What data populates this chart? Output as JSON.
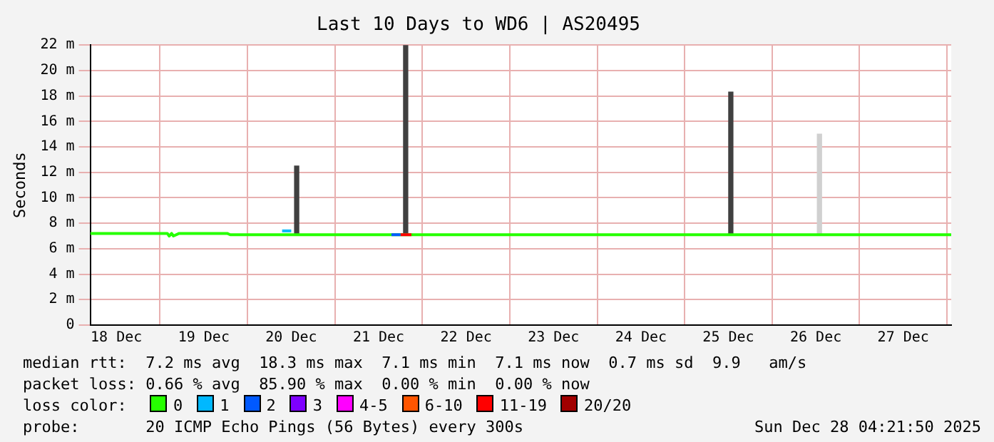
{
  "chart_data": {
    "type": "line",
    "title": "Last 10 Days to WD6 | AS20495",
    "ylabel": "Seconds",
    "xlim": [
      "2025-12-18T04:50",
      "2025-12-28T01:10"
    ],
    "xticks": [
      {
        "value": "2025-12-18T12:00",
        "label": "18 Dec"
      },
      {
        "value": "2025-12-19T12:00",
        "label": "19 Dec"
      },
      {
        "value": "2025-12-20T12:00",
        "label": "20 Dec"
      },
      {
        "value": "2025-12-21T12:00",
        "label": "21 Dec"
      },
      {
        "value": "2025-12-22T12:00",
        "label": "22 Dec"
      },
      {
        "value": "2025-12-23T12:00",
        "label": "23 Dec"
      },
      {
        "value": "2025-12-24T12:00",
        "label": "24 Dec"
      },
      {
        "value": "2025-12-25T12:00",
        "label": "25 Dec"
      },
      {
        "value": "2025-12-26T12:00",
        "label": "26 Dec"
      },
      {
        "value": "2025-12-27T12:00",
        "label": "27 Dec"
      }
    ],
    "ylim": [
      0,
      22
    ],
    "yticks": [
      0,
      {
        "value": 2,
        "label": "2 m"
      },
      {
        "value": 4,
        "label": "4 m"
      },
      {
        "value": 6,
        "label": "6 m"
      },
      {
        "value": 8,
        "label": "8 m"
      },
      {
        "value": 10,
        "label": "10 m"
      },
      {
        "value": 12,
        "label": "12 m"
      },
      {
        "value": 14,
        "label": "14 m"
      },
      {
        "value": 16,
        "label": "16 m"
      },
      {
        "value": 18,
        "label": "18 m"
      },
      {
        "value": 20,
        "label": "20 m"
      },
      {
        "value": 22,
        "label": "22 m"
      }
    ],
    "grid": true,
    "legend": "bottom",
    "legend_title": "loss color:",
    "marker": "none",
    "line_style": "solid",
    "series": [
      {
        "type": "bar",
        "x": [
          "2025-12-20T13:30",
          "2025-12-21T19:25",
          "2025-12-25T12:40",
          "2025-12-26T13:00"
        ],
        "base": [
          7.1,
          7.1,
          7.1,
          7.1
        ],
        "values": [
          5.4,
          14.9,
          11.2,
          7.9
        ],
        "colors": [
          "#404040",
          "#404040",
          "#404040",
          "#d0d0d0"
        ]
      },
      {
        "name": "0",
        "color": "#26ff00",
        "x": [
          "2025-12-18T04:50",
          "2025-12-19T02:00",
          "2025-12-19T02:30",
          "2025-12-19T03:10",
          "2025-12-19T03:40",
          "2025-12-19T05:15",
          "2025-12-19T18:25",
          "2025-12-19T19:15",
          "2025-12-28T01:10"
        ],
        "values": [
          7.2,
          7.2,
          7.0,
          7.2,
          7.0,
          7.2,
          7.2,
          7.1,
          7.1
        ]
      },
      {
        "name": "1",
        "color": "#00b8ff",
        "x": [
          "2025-12-20T09:30",
          "2025-12-20T12:00"
        ],
        "values": [
          7.4,
          7.4
        ]
      },
      {
        "name": "2",
        "color": "#0059ff",
        "x": [
          "2025-12-21T15:30",
          "2025-12-21T18:00"
        ],
        "values": [
          7.1,
          7.1
        ]
      },
      {
        "name": "3",
        "color": "#7e00ff"
      },
      {
        "name": "4-5",
        "color": "#ff00ff"
      },
      {
        "name": "6-10",
        "color": "#ff5500"
      },
      {
        "name": "11-19",
        "color": "#ff0000",
        "x": [
          "2025-12-21T18:00",
          "2025-12-21T21:00"
        ],
        "values": [
          7.1,
          7.1
        ]
      },
      {
        "name": "20/20",
        "color": "#a10000"
      }
    ],
    "annotations": [
      "median rtt:  7.2 ms avg  18.3 ms max  7.1 ms min  7.1 ms now  0.7 ms sd  9.9   am/s",
      "packet loss: 0.66 % avg  85.90 % max  0.00 % min  0.00 % now",
      "probe:       20 ICMP Echo Pings (56 Bytes) every 300s",
      "Sun Dec 28 04:21:50 2025"
    ]
  }
}
